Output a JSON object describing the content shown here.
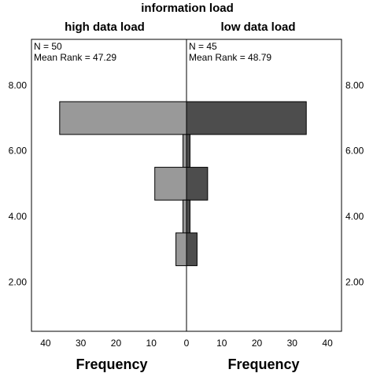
{
  "chart_data": {
    "type": "bar",
    "orientation": "horizontal-population-pyramid",
    "title": "information load",
    "groups": [
      {
        "name": "high data load",
        "side": "left",
        "color": "#999999",
        "n_text": "N = 50",
        "mean_rank_text": "Mean Rank = 47.29",
        "bins": [
          {
            "y": 7,
            "frequency": 36
          },
          {
            "y": 6,
            "frequency": 1
          },
          {
            "y": 5,
            "frequency": 9
          },
          {
            "y": 4,
            "frequency": 1
          },
          {
            "y": 3,
            "frequency": 3
          }
        ]
      },
      {
        "name": "low data load",
        "side": "right",
        "color": "#4d4d4d",
        "n_text": "N = 45",
        "mean_rank_text": "Mean Rank = 48.79",
        "bins": [
          {
            "y": 7,
            "frequency": 34
          },
          {
            "y": 6,
            "frequency": 1
          },
          {
            "y": 5,
            "frequency": 6
          },
          {
            "y": 4,
            "frequency": 1
          },
          {
            "y": 3,
            "frequency": 3
          }
        ]
      }
    ],
    "bin_width": 1,
    "ylim": [
      0.5,
      9.4
    ],
    "yticks": [
      "2.00",
      "4.00",
      "6.00",
      "8.00"
    ],
    "ytick_values": [
      2,
      4,
      6,
      8
    ],
    "xlim_left": [
      0,
      44
    ],
    "xlim_right": [
      0,
      44
    ],
    "xticks_left": [
      40,
      30,
      20,
      10,
      0
    ],
    "xticks_right": [
      0,
      10,
      20,
      30,
      40
    ],
    "xlabel_left": "Frequency",
    "xlabel_right": "Frequency",
    "ylabel": ""
  }
}
